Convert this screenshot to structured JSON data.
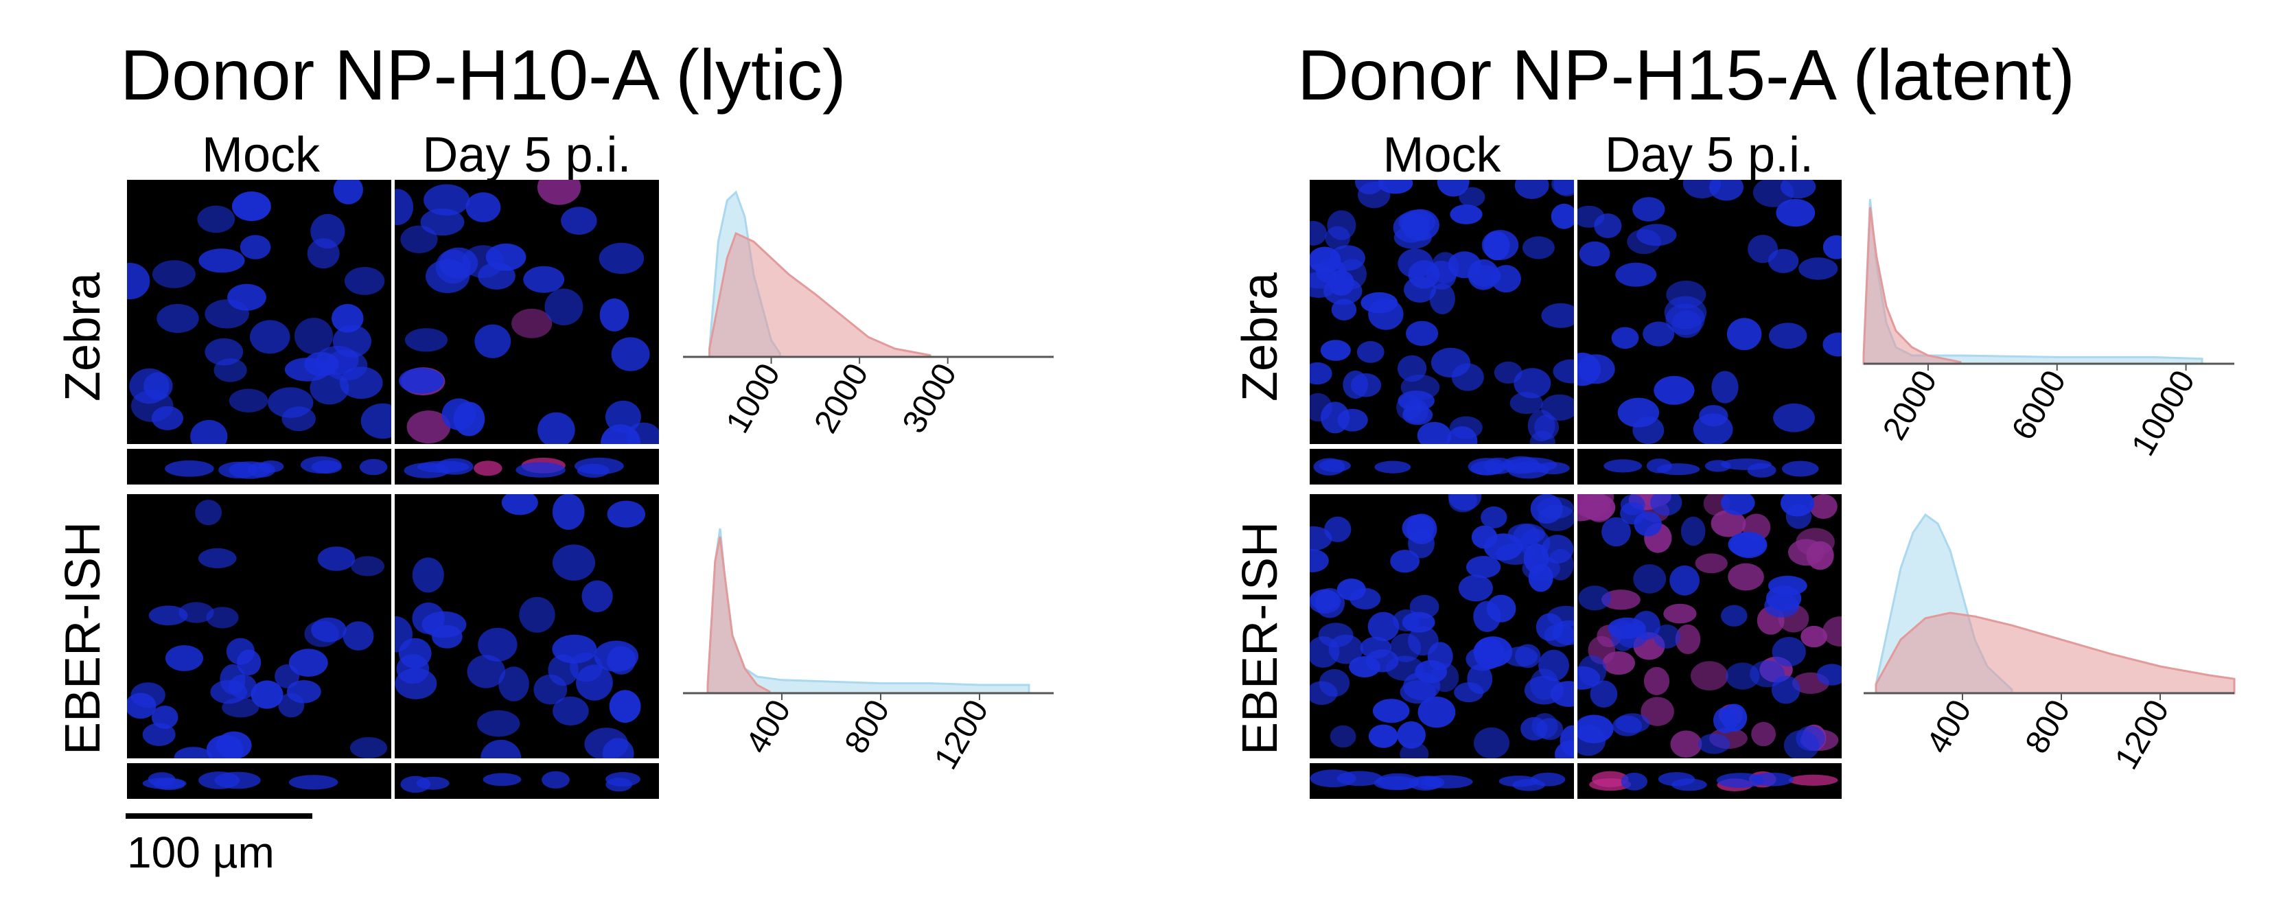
{
  "figure": {
    "left": {
      "title": "Donor NP-H10-A (lytic)",
      "col_mock": "Mock",
      "col_infected": "Day 5 p.i.",
      "row_top": "Zebra",
      "row_bottom": "EBER-ISH",
      "scalebar_label": "100 µm"
    },
    "right": {
      "title": "Donor NP-H15-A (latent)",
      "col_mock": "Mock",
      "col_infected": "Day 5 p.i.",
      "row_top": "Zebra",
      "row_bottom": "EBER-ISH"
    }
  },
  "colors": {
    "nuclei": "#1a2fd9",
    "signal": "#d1306a",
    "hist_mock": "#a9d8ef",
    "hist_infected": "#e39a9a",
    "overlap": "#a58fb0"
  },
  "chart_data": [
    {
      "type": "area",
      "panel": "left-zebra",
      "x_ticks": [
        "1000",
        "2000",
        "3000"
      ],
      "xlim": [
        0,
        4200
      ],
      "series": [
        {
          "color": "#a9d8ef",
          "x": [
            300,
            400,
            500,
            600,
            700,
            800,
            900,
            1000,
            1100
          ],
          "y": [
            0.05,
            0.7,
            0.95,
            1.0,
            0.85,
            0.5,
            0.3,
            0.1,
            0.02
          ]
        },
        {
          "color": "#e39a9a",
          "x": [
            300,
            500,
            600,
            800,
            1000,
            1200,
            1500,
            1800,
            2100,
            2400,
            2800
          ],
          "y": [
            0.05,
            0.6,
            0.75,
            0.7,
            0.6,
            0.5,
            0.38,
            0.25,
            0.12,
            0.05,
            0.01
          ]
        }
      ]
    },
    {
      "type": "area",
      "panel": "left-eber",
      "x_ticks": [
        "400",
        "800",
        "1200"
      ],
      "xlim": [
        0,
        1500
      ],
      "series": [
        {
          "color": "#a9d8ef",
          "x": [
            100,
            130,
            150,
            170,
            200,
            250,
            300,
            400,
            600,
            800,
            1000,
            1200,
            1400
          ],
          "y": [
            0.05,
            0.8,
            1.0,
            0.7,
            0.35,
            0.15,
            0.1,
            0.08,
            0.07,
            0.06,
            0.06,
            0.05,
            0.05
          ]
        },
        {
          "color": "#e39a9a",
          "x": [
            100,
            130,
            150,
            170,
            200,
            250,
            300,
            350
          ],
          "y": [
            0.05,
            0.8,
            0.95,
            0.7,
            0.35,
            0.15,
            0.05,
            0.01
          ]
        }
      ]
    },
    {
      "type": "area",
      "panel": "right-zebra",
      "x_ticks": [
        "2000",
        "6000",
        "10000"
      ],
      "xlim": [
        0,
        11500
      ],
      "series": [
        {
          "color": "#a9d8ef",
          "x": [
            0,
            200,
            400,
            700,
            1000,
            1500,
            3000,
            6000,
            9000,
            10500
          ],
          "y": [
            0.05,
            1.0,
            0.6,
            0.25,
            0.1,
            0.05,
            0.05,
            0.04,
            0.04,
            0.03
          ]
        },
        {
          "color": "#e39a9a",
          "x": [
            0,
            200,
            400,
            700,
            1000,
            1500,
            2000,
            3000
          ],
          "y": [
            0.05,
            0.95,
            0.65,
            0.35,
            0.2,
            0.1,
            0.05,
            0.01
          ]
        }
      ]
    },
    {
      "type": "area",
      "panel": "right-eber",
      "x_ticks": [
        "400",
        "800",
        "1200"
      ],
      "xlim": [
        0,
        1500
      ],
      "series": [
        {
          "color": "#a9d8ef",
          "x": [
            50,
            150,
            200,
            250,
            300,
            350,
            400,
            450,
            500,
            600
          ],
          "y": [
            0.05,
            0.7,
            0.9,
            1.0,
            0.95,
            0.8,
            0.55,
            0.3,
            0.15,
            0.02
          ]
        },
        {
          "color": "#e39a9a",
          "x": [
            50,
            150,
            250,
            350,
            450,
            600,
            800,
            1000,
            1200,
            1400,
            1500
          ],
          "y": [
            0.05,
            0.3,
            0.42,
            0.45,
            0.43,
            0.38,
            0.3,
            0.22,
            0.15,
            0.1,
            0.08
          ]
        }
      ]
    }
  ]
}
